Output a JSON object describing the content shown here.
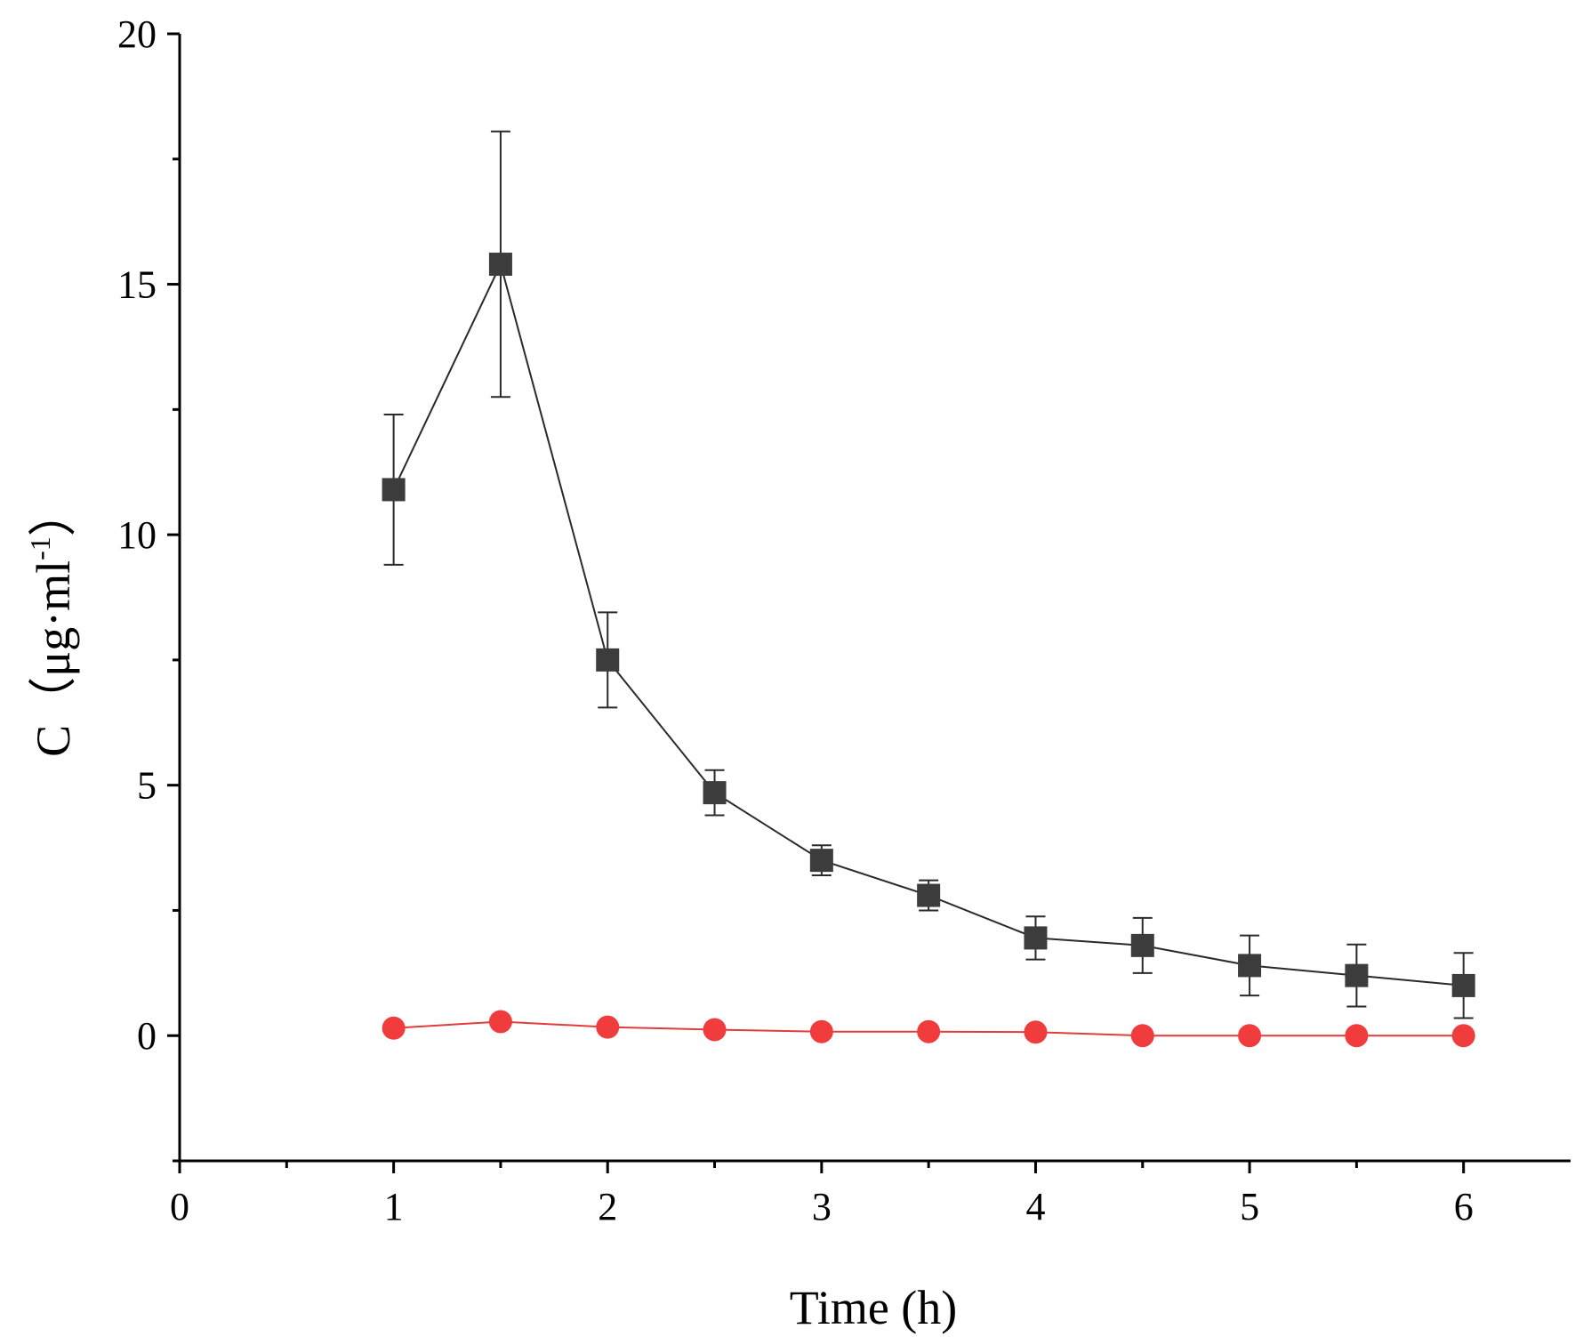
{
  "chart_data": {
    "type": "scatter",
    "title": "",
    "xlabel": "Time (h)",
    "ylabel": {
      "base": "C（μg·ml",
      "sup": "-1",
      "close": "）"
    },
    "xlim": [
      0,
      6.5
    ],
    "ylim": [
      -2.5,
      20
    ],
    "x_ticks": [
      0,
      1,
      2,
      3,
      4,
      5,
      6
    ],
    "y_ticks": [
      0,
      5,
      10,
      15,
      20
    ],
    "grid": false,
    "series": [
      {
        "name": "series-1",
        "color": "#3c3c3c",
        "line_color": "#2a2a2a",
        "marker": "square",
        "x": [
          1,
          1.5,
          2,
          2.5,
          3,
          3.5,
          4,
          4.5,
          5,
          5.5,
          6
        ],
        "y": [
          10.9,
          15.4,
          7.5,
          4.85,
          3.5,
          2.8,
          1.95,
          1.8,
          1.4,
          1.2,
          1.0
        ],
        "error": [
          1.5,
          2.65,
          0.95,
          0.45,
          0.3,
          0.3,
          0.43,
          0.55,
          0.6,
          0.62,
          0.65
        ]
      },
      {
        "name": "series-2",
        "color": "#f03c3c",
        "line_color": "#e03c3c",
        "marker": "circle",
        "x": [
          1,
          1.5,
          2,
          2.5,
          3,
          3.5,
          4,
          4.5,
          5,
          5.5,
          6
        ],
        "y": [
          0.15,
          0.28,
          0.17,
          0.12,
          0.08,
          0.08,
          0.07,
          0.0,
          0.0,
          0.0,
          0.0
        ],
        "error": []
      }
    ]
  }
}
